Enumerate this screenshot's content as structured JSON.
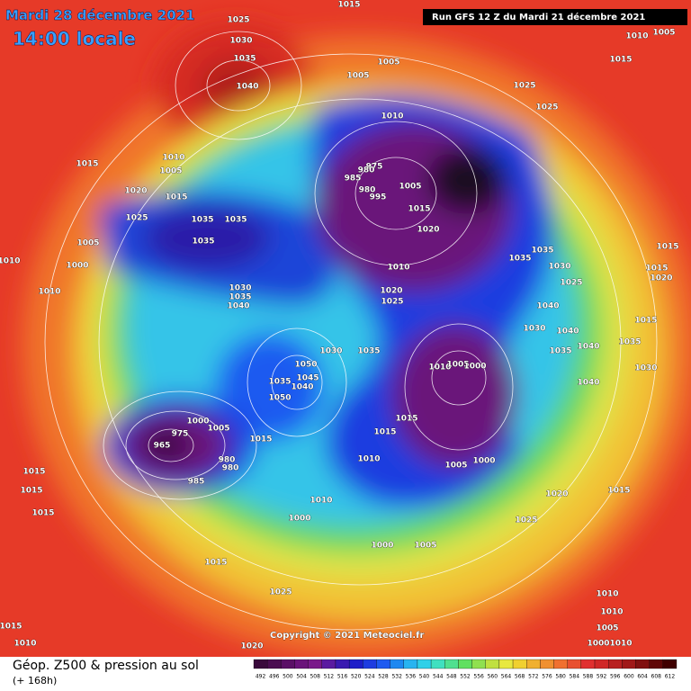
{
  "header": {
    "date": "Mardi 28 décembre 2021",
    "time": "14:00 locale",
    "run": "Run GFS 12 Z du Mardi 21 décembre 2021"
  },
  "copyright": "Copyright © 2021 Meteociel.fr",
  "footer": {
    "title": "Géop. Z500 & pression au sol",
    "lead": "(+ 168h)"
  },
  "legend": {
    "ticks": [
      492,
      496,
      500,
      504,
      508,
      512,
      516,
      520,
      524,
      528,
      532,
      536,
      540,
      544,
      548,
      552,
      556,
      560,
      564,
      568,
      572,
      576,
      580,
      584,
      588,
      592,
      596,
      600,
      604,
      608,
      612
    ],
    "colors": [
      "#3a0a3c",
      "#4a0d50",
      "#5a1066",
      "#6a137a",
      "#7a1a8a",
      "#5a1aa0",
      "#3a1ab0",
      "#1e1ec8",
      "#1e3ce0",
      "#1e5af0",
      "#1e88f0",
      "#28b4f0",
      "#30d0e8",
      "#40e0c0",
      "#50e090",
      "#60e060",
      "#90e050",
      "#c0e040",
      "#e8e840",
      "#f0d030",
      "#f0b030",
      "#f09030",
      "#f07030",
      "#e85030",
      "#e03030",
      "#d02828",
      "#b82020",
      "#a01818",
      "#801010",
      "#600808",
      "#400000"
    ]
  },
  "isobar_labels": [
    1015,
    1025,
    1030,
    1035,
    1040,
    1005,
    1005,
    1025,
    1025,
    1010,
    1015,
    1010,
    1005,
    1015,
    1010,
    1005,
    1020,
    1015,
    1025,
    1035,
    1035,
    1035,
    1005,
    1000,
    1010,
    1010,
    1030,
    1035,
    1040,
    975,
    980,
    985,
    980,
    995,
    1005,
    1015,
    1020,
    1010,
    1020,
    1025,
    1035,
    1035,
    1030,
    1025,
    1015,
    1015,
    1020,
    1040,
    1030,
    1040,
    1040,
    1015,
    1035,
    1030,
    1035,
    1030,
    1035,
    1010,
    1005,
    1000,
    1040,
    1050,
    1045,
    1040,
    1035,
    1050,
    1015,
    1015,
    1010,
    1005,
    1000,
    1015,
    1000,
    1005,
    965,
    975,
    980,
    980,
    985,
    1015,
    1015,
    1015,
    1020,
    1015,
    1025,
    1010,
    1000,
    1000,
    1005,
    1015,
    1025,
    1010,
    1010,
    1005,
    1010,
    1000,
    1015,
    1010,
    1020
  ]
}
